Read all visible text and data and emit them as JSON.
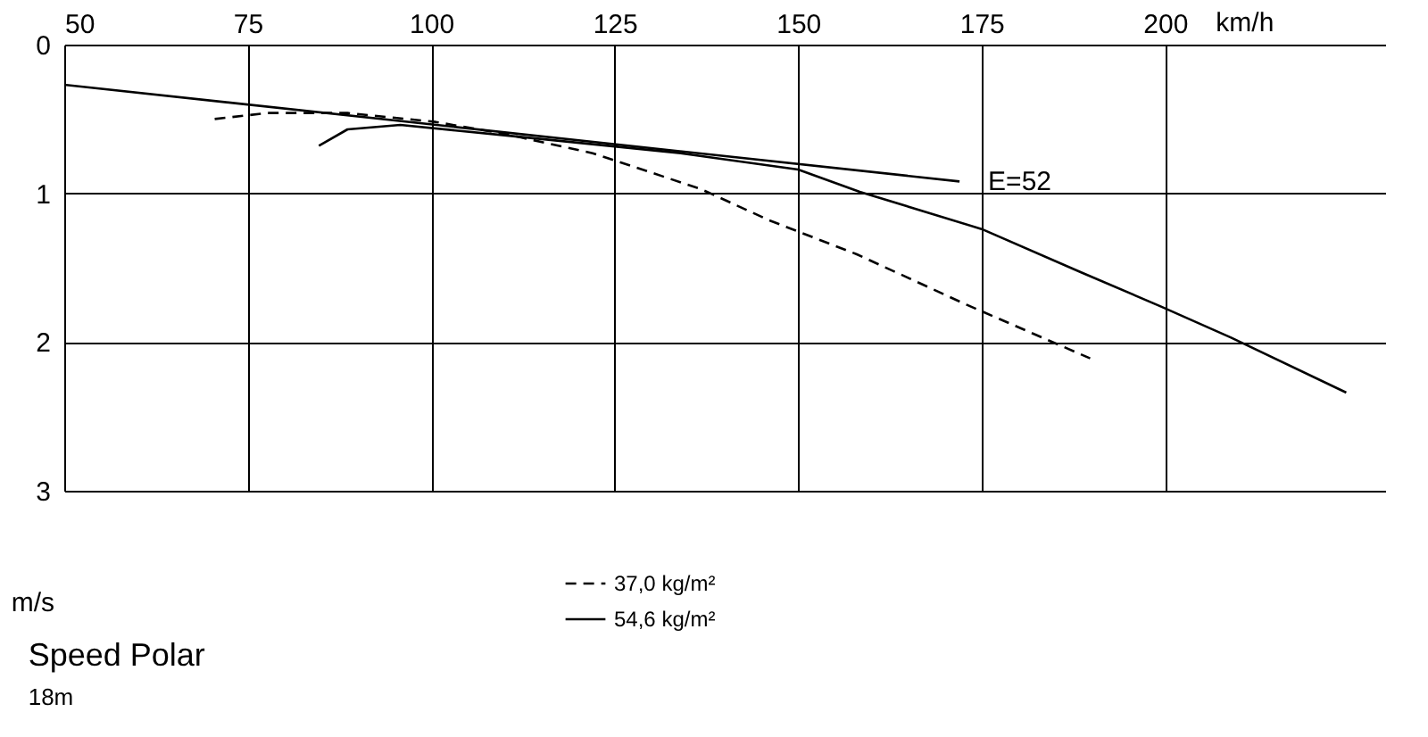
{
  "chart_data": {
    "type": "line",
    "title": "Speed Polar",
    "subtitle": "18m",
    "xlabel": "km/h",
    "ylabel": "m/s",
    "xlim": [
      50,
      230
    ],
    "xticks": [
      50,
      75,
      100,
      125,
      150,
      175,
      200
    ],
    "ylim": [
      3,
      0
    ],
    "yticks": [
      0,
      1,
      2,
      3
    ],
    "grid": true,
    "legend": "bottom",
    "series": [
      {
        "name": "37,0 kg/m²",
        "color": "#000000",
        "line_style": "dashed",
        "x": [
          70.5,
          77.7,
          88.6,
          100.6,
          110,
          122,
          136.7,
          146,
          158,
          173,
          189.8
        ],
        "values": [
          0.5,
          0.46,
          0.46,
          0.52,
          0.6,
          0.73,
          0.97,
          1.18,
          1.41,
          1.75,
          2.11
        ]
      },
      {
        "name": "54,6 kg/m²",
        "color": "#000000",
        "line_style": "solid",
        "x": [
          84.7,
          88.6,
          95.8,
          110,
          134,
          150,
          158.4,
          175,
          188.5,
          199.4,
          209,
          224.7
        ],
        "values": [
          0.68,
          0.57,
          0.54,
          0.61,
          0.73,
          0.84,
          0.99,
          1.24,
          1.53,
          1.76,
          1.97,
          2.34
        ]
      },
      {
        "type": "line",
        "color": "#000000",
        "line_style": "solid",
        "x": [
          50,
          172
        ],
        "values": [
          0.27,
          0.92
        ]
      }
    ],
    "annotations": [
      {
        "text": "E=52",
        "x": 172,
        "y": 0.92
      }
    ]
  }
}
